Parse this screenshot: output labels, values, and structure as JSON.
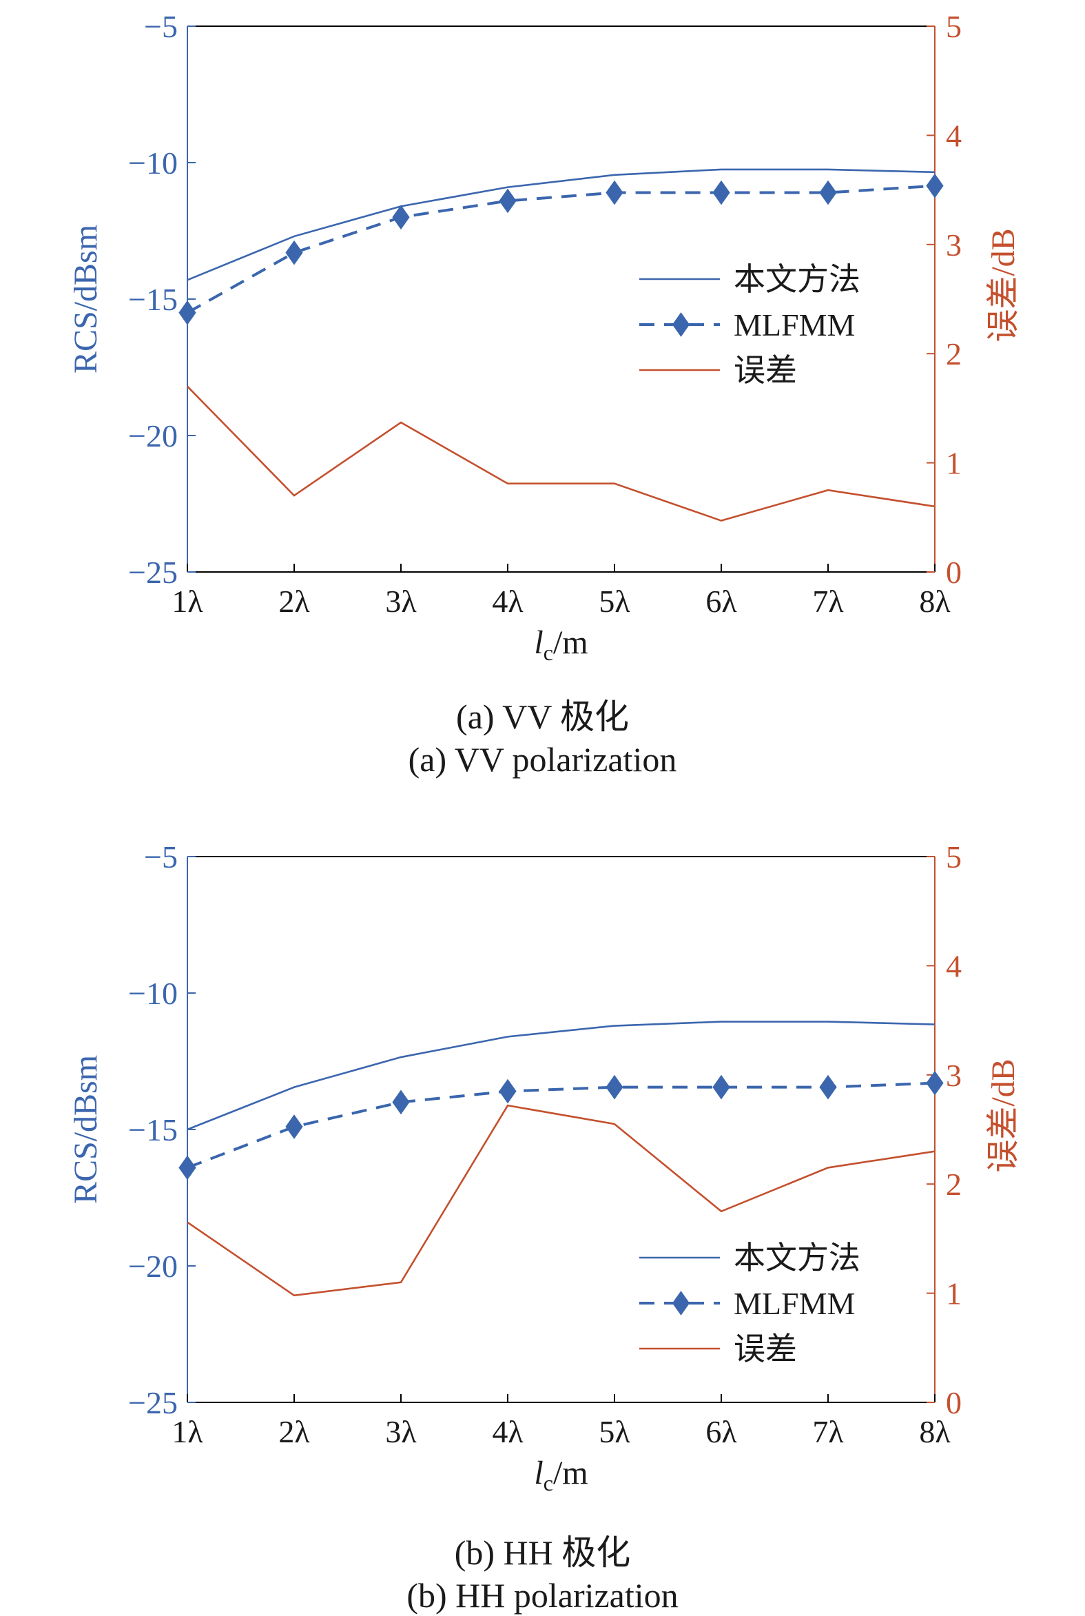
{
  "chart_data": [
    {
      "type": "line",
      "caption_cn": "(a) VV 极化",
      "caption_en": "(a) VV polarization",
      "categories": [
        "1λ",
        "2λ",
        "3λ",
        "4λ",
        "5λ",
        "6λ",
        "7λ",
        "8λ"
      ],
      "xlabel": "lc/m",
      "xlabel_main": "l",
      "xlabel_sub": "c",
      "xlabel_unit": "/m",
      "ylabel_left": "RCS/dBsm",
      "ylabel_right": "误差/dB",
      "ylim_left": [
        -25,
        -5
      ],
      "ylim_right": [
        0,
        5
      ],
      "yticks_left": [
        "−25",
        "−20",
        "−15",
        "−10",
        "−5"
      ],
      "yticks_right": [
        "0",
        "1",
        "2",
        "3",
        "4",
        "5"
      ],
      "legend_position": "right",
      "series": [
        {
          "name": "本文方法",
          "axis": "left",
          "style": "solid",
          "color": "#3B66AE",
          "values": [
            -14.3,
            -12.7,
            -11.6,
            -10.9,
            -10.45,
            -10.25,
            -10.25,
            -10.35
          ]
        },
        {
          "name": "MLFMM",
          "axis": "left",
          "style": "dashed-diamond",
          "color": "#3B66AE",
          "values": [
            -15.5,
            -13.3,
            -12.0,
            -11.4,
            -11.1,
            -11.1,
            -11.1,
            -10.85
          ]
        },
        {
          "name": "误差",
          "axis": "right",
          "style": "solid",
          "color": "#C4502E",
          "values": [
            1.7,
            0.7,
            1.37,
            0.81,
            0.81,
            0.47,
            0.75,
            0.6
          ]
        }
      ]
    },
    {
      "type": "line",
      "caption_cn": "(b) HH 极化",
      "caption_en": "(b) HH polarization",
      "categories": [
        "1λ",
        "2λ",
        "3λ",
        "4λ",
        "5λ",
        "6λ",
        "7λ",
        "8λ"
      ],
      "xlabel": "lc/m",
      "xlabel_main": "l",
      "xlabel_sub": "c",
      "xlabel_unit": "/m",
      "ylabel_left": "RCS/dBsm",
      "ylabel_right": "误差/dB",
      "ylim_left": [
        -25,
        -5
      ],
      "ylim_right": [
        0,
        5
      ],
      "yticks_left": [
        "−25",
        "−20",
        "−15",
        "−10",
        "−5"
      ],
      "yticks_right": [
        "0",
        "1",
        "2",
        "3",
        "4",
        "5"
      ],
      "legend_position": "bottom-right",
      "series": [
        {
          "name": "本文方法",
          "axis": "left",
          "style": "solid",
          "color": "#3B66AE",
          "values": [
            -15.0,
            -13.45,
            -12.35,
            -11.6,
            -11.2,
            -11.05,
            -11.05,
            -11.15
          ]
        },
        {
          "name": "MLFMM",
          "axis": "left",
          "style": "dashed-diamond",
          "color": "#3B66AE",
          "values": [
            -16.4,
            -14.9,
            -14.0,
            -13.6,
            -13.45,
            -13.45,
            -13.45,
            -13.3
          ]
        },
        {
          "name": "误差",
          "axis": "right",
          "style": "solid",
          "color": "#C4502E",
          "values": [
            1.65,
            0.98,
            1.1,
            2.72,
            2.55,
            1.75,
            2.15,
            2.3
          ]
        }
      ]
    }
  ]
}
